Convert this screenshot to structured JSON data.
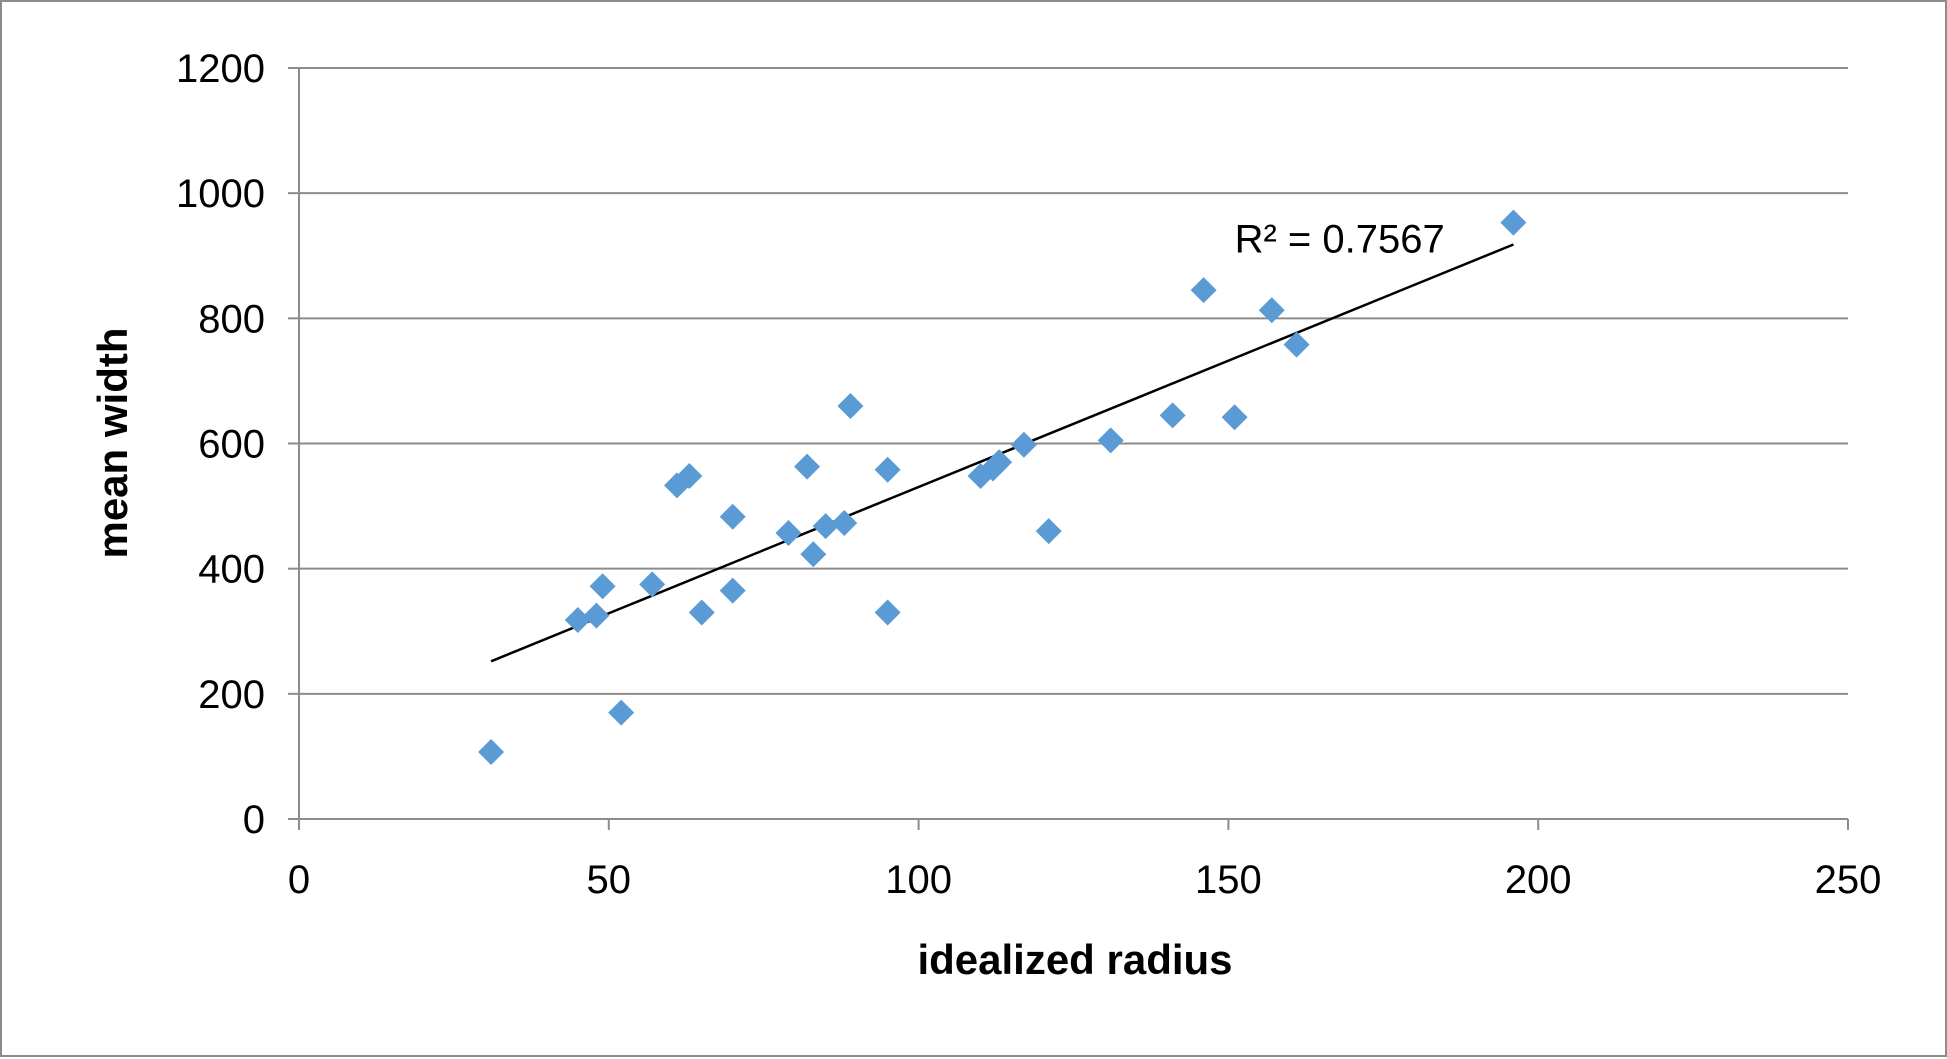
{
  "chart_data": {
    "type": "scatter",
    "xlabel": "idealized radius",
    "ylabel": "mean width",
    "xlim": [
      0,
      250
    ],
    "ylim": [
      0,
      1200
    ],
    "xticks": [
      "0",
      "50",
      "100",
      "150",
      "200",
      "250"
    ],
    "yticks": [
      "0",
      "200",
      "400",
      "600",
      "800",
      "1000",
      "1200"
    ],
    "grid": "horizontal",
    "legend": "none",
    "marker_color": "#5B9BD5",
    "trendline_color": "#000000",
    "series": [
      {
        "points": [
          {
            "x": 31,
            "y": 107
          },
          {
            "x": 45,
            "y": 318
          },
          {
            "x": 48,
            "y": 325
          },
          {
            "x": 49,
            "y": 372
          },
          {
            "x": 52,
            "y": 170
          },
          {
            "x": 57,
            "y": 375
          },
          {
            "x": 61,
            "y": 533
          },
          {
            "x": 63,
            "y": 548
          },
          {
            "x": 65,
            "y": 330
          },
          {
            "x": 70,
            "y": 365
          },
          {
            "x": 70,
            "y": 483
          },
          {
            "x": 79,
            "y": 457
          },
          {
            "x": 82,
            "y": 563
          },
          {
            "x": 83,
            "y": 423
          },
          {
            "x": 85,
            "y": 468
          },
          {
            "x": 88,
            "y": 473
          },
          {
            "x": 89,
            "y": 660
          },
          {
            "x": 95,
            "y": 558
          },
          {
            "x": 95,
            "y": 330
          },
          {
            "x": 110,
            "y": 548
          },
          {
            "x": 112,
            "y": 560
          },
          {
            "x": 113,
            "y": 570
          },
          {
            "x": 117,
            "y": 598
          },
          {
            "x": 121,
            "y": 460
          },
          {
            "x": 131,
            "y": 605
          },
          {
            "x": 141,
            "y": 645
          },
          {
            "x": 146,
            "y": 845
          },
          {
            "x": 151,
            "y": 642
          },
          {
            "x": 157,
            "y": 813
          },
          {
            "x": 161,
            "y": 758
          },
          {
            "x": 196,
            "y": 953
          }
        ]
      }
    ],
    "trendline": {
      "type": "linear",
      "start": {
        "x": 31,
        "y": 252
      },
      "end": {
        "x": 196,
        "y": 918
      }
    },
    "annotations": [
      {
        "text": "R² = 0.7567",
        "x": 151,
        "y": 905
      }
    ]
  }
}
